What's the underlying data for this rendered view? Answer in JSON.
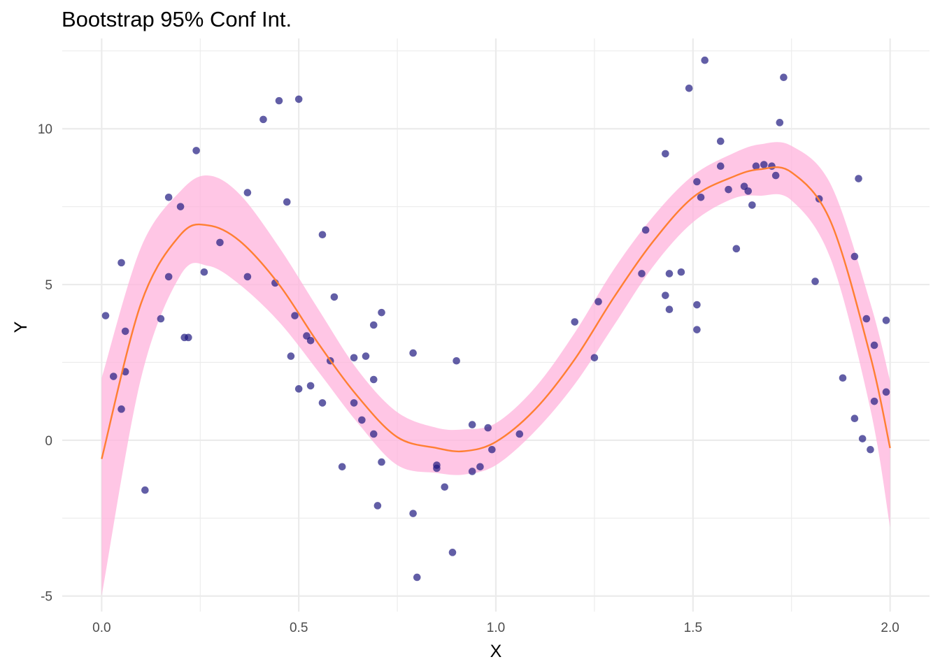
{
  "chart_data": {
    "type": "scatter",
    "title": "Bootstrap 95% Conf Int.",
    "xlabel": "X",
    "ylabel": "Y",
    "xlim": [
      -0.1,
      2.1
    ],
    "ylim": [
      -5.5,
      12.9
    ],
    "x_ticks": [
      0.0,
      0.5,
      1.0,
      1.5,
      2.0
    ],
    "x_tick_labels": [
      "0.0",
      "0.5",
      "1.0",
      "1.5",
      "2.0"
    ],
    "y_ticks": [
      -5,
      0,
      5,
      10
    ],
    "y_tick_labels": [
      "-5",
      "0",
      "5",
      "10"
    ],
    "grid": true,
    "legend": "none",
    "colors": {
      "points": "#1f1a80",
      "fit_line": "#ff7f32",
      "ci_band": "#ffb3dc",
      "grid": "#ebebeb"
    },
    "points": {
      "x": [
        0.01,
        0.03,
        0.05,
        0.05,
        0.06,
        0.06,
        0.11,
        0.15,
        0.17,
        0.17,
        0.2,
        0.21,
        0.22,
        0.24,
        0.26,
        0.3,
        0.37,
        0.37,
        0.41,
        0.44,
        0.45,
        0.47,
        0.48,
        0.49,
        0.5,
        0.5,
        0.52,
        0.53,
        0.53,
        0.56,
        0.56,
        0.58,
        0.59,
        0.61,
        0.64,
        0.64,
        0.66,
        0.67,
        0.69,
        0.69,
        0.69,
        0.7,
        0.71,
        0.71,
        0.79,
        0.79,
        0.8,
        0.85,
        0.85,
        0.87,
        0.89,
        0.9,
        0.94,
        0.94,
        0.96,
        0.98,
        0.99,
        1.06,
        1.2,
        1.25,
        1.26,
        1.37,
        1.38,
        1.43,
        1.43,
        1.44,
        1.44,
        1.47,
        1.49,
        1.51,
        1.51,
        1.51,
        1.52,
        1.53,
        1.57,
        1.57,
        1.59,
        1.61,
        1.63,
        1.64,
        1.65,
        1.66,
        1.68,
        1.7,
        1.71,
        1.72,
        1.73,
        1.81,
        1.82,
        1.88,
        1.91,
        1.91,
        1.92,
        1.93,
        1.94,
        1.95,
        1.96,
        1.96,
        1.99,
        1.99
      ],
      "y": [
        4.0,
        2.05,
        5.7,
        1.0,
        3.5,
        2.2,
        -1.6,
        3.9,
        7.8,
        5.25,
        7.5,
        3.3,
        3.3,
        9.3,
        5.4,
        6.35,
        7.95,
        5.25,
        10.3,
        5.05,
        10.9,
        7.65,
        2.7,
        4.0,
        10.95,
        1.65,
        3.35,
        3.2,
        1.75,
        6.6,
        1.2,
        2.55,
        4.6,
        -0.85,
        2.65,
        1.2,
        0.65,
        2.7,
        3.7,
        1.95,
        0.2,
        -2.1,
        4.1,
        -0.7,
        2.8,
        -2.35,
        -4.4,
        -0.8,
        -0.9,
        -1.5,
        -3.6,
        2.55,
        0.5,
        -1.0,
        -0.85,
        0.4,
        -0.3,
        0.2,
        3.8,
        2.65,
        4.45,
        5.35,
        6.75,
        4.65,
        9.2,
        5.35,
        4.2,
        5.4,
        11.3,
        4.35,
        8.3,
        3.55,
        7.8,
        12.2,
        8.8,
        9.6,
        8.05,
        6.15,
        8.15,
        8.0,
        7.55,
        8.8,
        8.85,
        8.8,
        8.5,
        10.2,
        11.65,
        5.1,
        7.75,
        2.0,
        5.9,
        0.7,
        8.4,
        0.05,
        3.9,
        -0.3,
        3.05,
        1.25,
        3.85,
        1.55
      ]
    },
    "fit": {
      "x": [
        0.0,
        0.1,
        0.2,
        0.27,
        0.35,
        0.45,
        0.55,
        0.65,
        0.75,
        0.85,
        0.92,
        1.0,
        1.1,
        1.2,
        1.3,
        1.4,
        1.5,
        1.6,
        1.67,
        1.75,
        1.85,
        1.95,
        2.0
      ],
      "y": [
        -0.6,
        4.4,
        6.6,
        6.9,
        6.4,
        5.0,
        3.1,
        1.4,
        0.1,
        -0.25,
        -0.35,
        -0.05,
        1.0,
        2.6,
        4.6,
        6.4,
        7.8,
        8.45,
        8.7,
        8.6,
        7.0,
        2.7,
        -0.25
      ],
      "lower": [
        -5.0,
        2.0,
        5.3,
        5.6,
        5.0,
        3.8,
        2.2,
        0.55,
        -0.8,
        -1.05,
        -1.1,
        -0.8,
        0.3,
        1.8,
        3.7,
        5.6,
        7.0,
        7.75,
        7.85,
        7.7,
        5.8,
        1.0,
        -2.8
      ],
      "upper": [
        2.0,
        6.2,
        8.0,
        8.5,
        7.9,
        6.2,
        4.2,
        2.25,
        0.9,
        0.4,
        0.35,
        0.55,
        1.7,
        3.45,
        5.5,
        7.2,
        8.5,
        9.2,
        9.5,
        9.45,
        8.2,
        4.4,
        1.9
      ]
    }
  }
}
